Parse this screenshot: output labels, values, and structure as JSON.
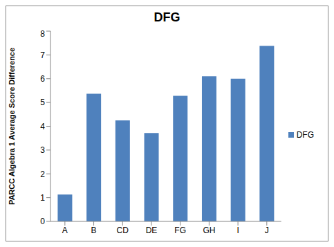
{
  "chart_data": {
    "type": "bar",
    "title": "DFG",
    "y_label": "PARCC Algebra 1 Average Score Difference",
    "categories": [
      "A",
      "B",
      "CD",
      "DE",
      "FG",
      "GH",
      "I",
      "J"
    ],
    "series": [
      {
        "name": "DFG",
        "color": "#4f81bd",
        "values": [
          1.13,
          5.37,
          4.25,
          3.72,
          5.28,
          6.1,
          6.0,
          7.38
        ]
      }
    ],
    "ylim": [
      0,
      8
    ],
    "yticks": [
      0,
      1,
      2,
      3,
      4,
      5,
      6,
      7,
      8
    ],
    "grid": false,
    "legend": "right"
  }
}
